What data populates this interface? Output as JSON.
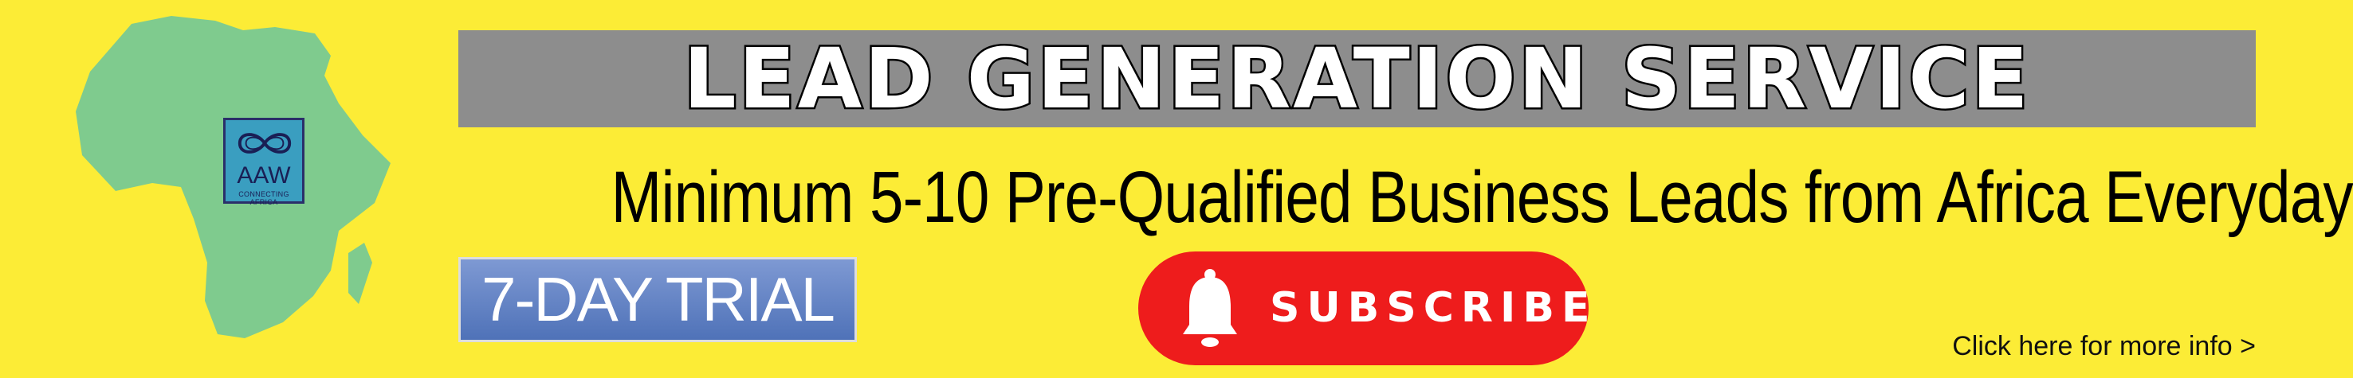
{
  "banner": {
    "background_color": "#fcec36",
    "logo": {
      "text": "AAW",
      "tagline": "CONNECTING AFRICA",
      "icon": "infinity-icon",
      "map_icon": "africa-map-icon",
      "map_color": "#7fcb8e"
    },
    "title": "LEAD GENERATION SERVICE",
    "subtitle": "Minimum 5-10 Pre-Qualified Business Leads from Africa Everyday",
    "trial_label": "7-DAY TRIAL",
    "subscribe": {
      "label": "SUBSCRIBE",
      "icon": "bell-icon",
      "color": "#ee1c1c"
    },
    "more_info": "Click here for more info >"
  }
}
